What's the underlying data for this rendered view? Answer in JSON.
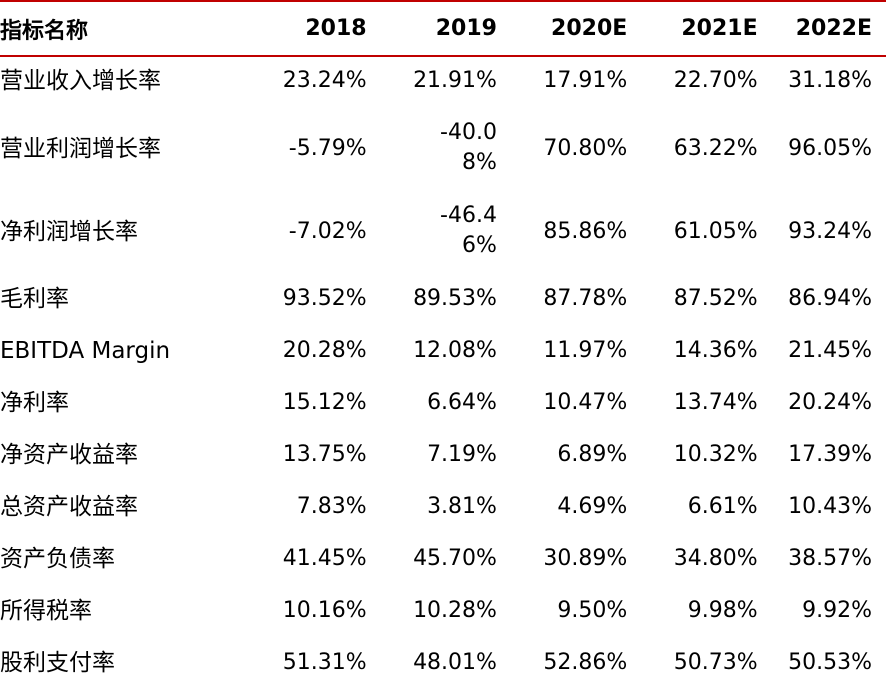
{
  "table": {
    "headers": [
      "指标名称",
      "2018",
      "2019",
      "2020E",
      "2021E",
      "2022E"
    ],
    "rows": [
      {
        "name": "营业收入增长率",
        "values": [
          "23.24%",
          "21.91%",
          "17.91%",
          "22.70%",
          "31.18%"
        ]
      },
      {
        "name": "营业利润增长率",
        "values": [
          "-5.79%",
          "-40.08%",
          "70.80%",
          "63.22%",
          "96.05%"
        ]
      },
      {
        "name": "净利润增长率",
        "values": [
          "-7.02%",
          "-46.46%",
          "85.86%",
          "61.05%",
          "93.24%"
        ]
      },
      {
        "name": "毛利率",
        "values": [
          "93.52%",
          "89.53%",
          "87.78%",
          "87.52%",
          "86.94%"
        ]
      },
      {
        "name": "EBITDA Margin",
        "values": [
          "20.28%",
          "12.08%",
          "11.97%",
          "14.36%",
          "21.45%"
        ]
      },
      {
        "name": "净利率",
        "values": [
          "15.12%",
          "6.64%",
          "10.47%",
          "13.74%",
          "20.24%"
        ]
      },
      {
        "name": "净资产收益率",
        "values": [
          "13.75%",
          "7.19%",
          "6.89%",
          "10.32%",
          "17.39%"
        ]
      },
      {
        "name": "总资产收益率",
        "values": [
          "7.83%",
          "3.81%",
          "4.69%",
          "6.61%",
          "10.43%"
        ]
      },
      {
        "name": "资产负债率",
        "values": [
          "41.45%",
          "45.70%",
          "30.89%",
          "34.80%",
          "38.57%"
        ]
      },
      {
        "name": "所得税率",
        "values": [
          "10.16%",
          "10.28%",
          "9.50%",
          "9.98%",
          "9.92%"
        ]
      },
      {
        "name": "股利支付率",
        "values": [
          "51.31%",
          "48.01%",
          "52.86%",
          "50.73%",
          "50.53%"
        ]
      }
    ]
  },
  "colors": {
    "accent_line": "#c00000",
    "text": "#000000",
    "background": "#ffffff"
  }
}
